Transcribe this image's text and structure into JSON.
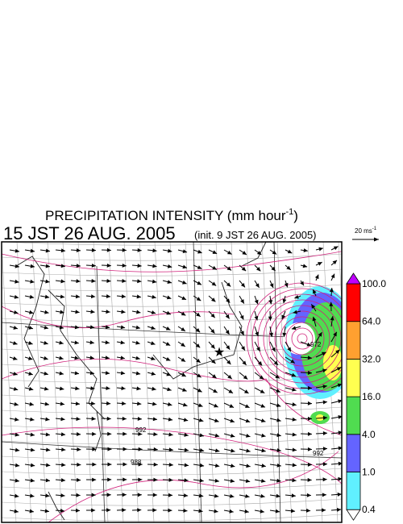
{
  "title": {
    "text": "PRECIPITATION INTENSITY (mm hour",
    "exponent": "-1",
    "close": ")"
  },
  "valid_time": "15 JST 26 AUG. 2005",
  "init_time": "(init. 9 JST 26 AUG. 2005)",
  "wind_scale": {
    "text": "20 ms",
    "exponent": "-1"
  },
  "colorbar": {
    "levels": [
      0.4,
      {
        "value": 1,
        "label": "1.0"
      },
      {
        "value": 4,
        "label": "4.0"
      },
      {
        "value": 16,
        "label": "16.0"
      },
      {
        "value": 32,
        "label": "32.0"
      },
      {
        "value": 64,
        "label": "64.0"
      },
      {
        "value": 100,
        "label": "100.0"
      }
    ],
    "colors": [
      "#ffffff",
      "#60f0ff",
      "#6464ff",
      "#50dc50",
      "#ffff50",
      "#ffa030",
      "#ff0000",
      "#c000ff"
    ]
  },
  "contour_labels": [
    "972",
    "992",
    "988",
    "992"
  ]
}
